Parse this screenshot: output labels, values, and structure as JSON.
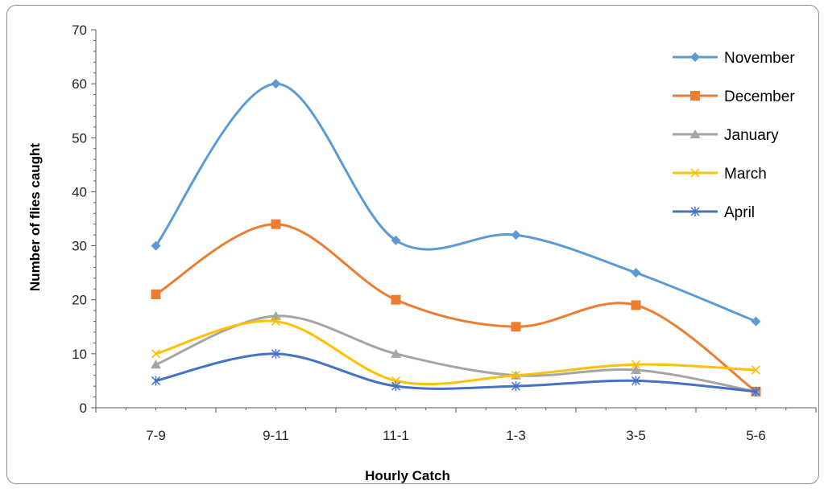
{
  "chart_data": {
    "type": "line",
    "title": "",
    "xlabel": "Hourly Catch",
    "ylabel": "Number of flies caught",
    "categories": [
      "7-9",
      "9-11",
      "11-1",
      "1-3",
      "3-5",
      "5-6"
    ],
    "ylim": [
      0,
      70
    ],
    "yticks": [
      0,
      10,
      20,
      30,
      40,
      50,
      60,
      70
    ],
    "grid": false,
    "smooth": true,
    "legend_position": "right",
    "series": [
      {
        "name": "November",
        "color": "#5b9bd5",
        "marker": "diamond",
        "values": [
          30,
          60,
          31,
          32,
          25,
          16
        ]
      },
      {
        "name": "December",
        "color": "#ed7d31",
        "marker": "square",
        "values": [
          21,
          34,
          20,
          15,
          19,
          3
        ]
      },
      {
        "name": "January",
        "color": "#a5a5a5",
        "marker": "triangle",
        "values": [
          8,
          17,
          10,
          6,
          7,
          3
        ]
      },
      {
        "name": "March",
        "color": "#ffc000",
        "marker": "x",
        "values": [
          10,
          16,
          5,
          6,
          8,
          7
        ]
      },
      {
        "name": "April",
        "color": "#4472c4",
        "marker": "star",
        "values": [
          5,
          10,
          4,
          4,
          5,
          3
        ]
      }
    ]
  }
}
